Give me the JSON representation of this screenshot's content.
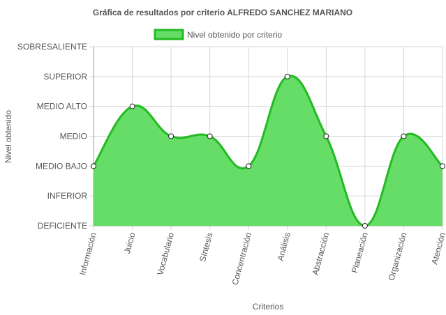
{
  "chart_data": {
    "type": "area",
    "title": "Gráfica de resultados por criterio ALFREDO SANCHEZ MARIANO",
    "xlabel": "Criterios",
    "ylabel": "Nivel obtenido",
    "legend": {
      "position": "top",
      "label": "Nivel obtenido por criterio"
    },
    "y_levels": [
      "DEFICIENTE",
      "INFERIOR",
      "MEDIO BAJO",
      "MEDIO",
      "MEDIO ALTO",
      "SUPERIOR",
      "SOBRESALIENTE"
    ],
    "ylim": [
      0,
      6
    ],
    "grid": true,
    "categories": [
      "Información",
      "Juicio",
      "Vocabulario",
      "Síntesis",
      "Concentración",
      "Análisis",
      "Abstracción",
      "Planeación",
      "Organización",
      "Atención"
    ],
    "series": [
      {
        "name": "Nivel obtenido por criterio",
        "values": [
          2,
          4,
          3,
          3,
          2,
          5,
          3,
          0,
          3,
          2
        ],
        "value_labels": [
          "MEDIO BAJO",
          "MEDIO ALTO",
          "MEDIO",
          "MEDIO",
          "MEDIO BAJO",
          "SUPERIOR",
          "MEDIO",
          "DEFICIENTE",
          "MEDIO",
          "MEDIO BAJO"
        ]
      }
    ],
    "colors": {
      "fill": "#66dd66",
      "line": "#22bb22",
      "grid": "#d6d6d6",
      "axis": "#999999",
      "text": "#555555",
      "title": "#555555"
    }
  }
}
